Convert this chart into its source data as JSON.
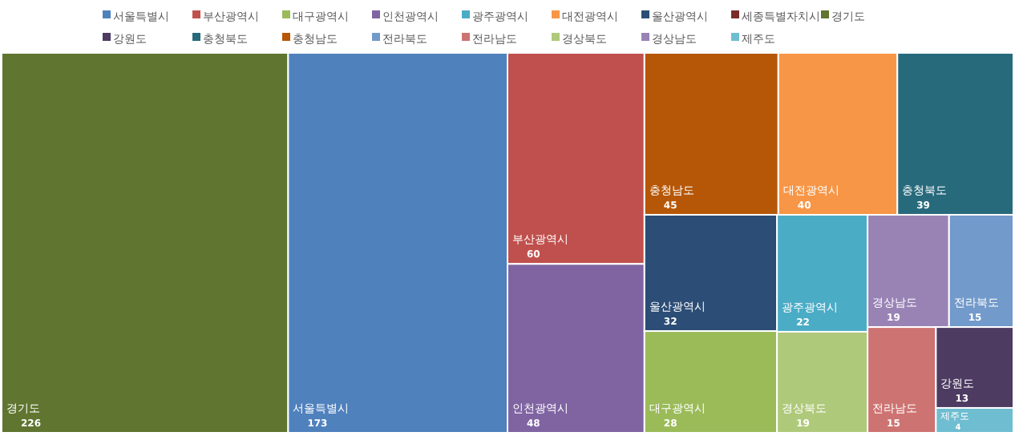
{
  "chart_data": {
    "type": "other",
    "categories": [
      "서울특별시",
      "부산광역시",
      "대구광역시",
      "인천광역시",
      "광주광역시",
      "대전광역시",
      "울산광역시",
      "세종특별자치시",
      "경기도",
      "강원도",
      "충청북도",
      "충청남도",
      "전라북도",
      "전라남도",
      "경상북도",
      "경상남도",
      "제주도"
    ],
    "values": [
      173,
      60,
      28,
      48,
      22,
      40,
      32,
      null,
      226,
      13,
      39,
      45,
      15,
      15,
      19,
      19,
      4
    ],
    "colors": [
      "#4f81bd",
      "#c0504d",
      "#9bbb59",
      "#8064a2",
      "#4bacc6",
      "#f79646",
      "#2c4d75",
      "#772c2a",
      "#5f7530",
      "#4d3b62",
      "#276a7c",
      "#b65708",
      "#729aca",
      "#cd7371",
      "#afc97a",
      "#9983b5",
      "#6fbdd1"
    ],
    "data_labels": true
  }
}
